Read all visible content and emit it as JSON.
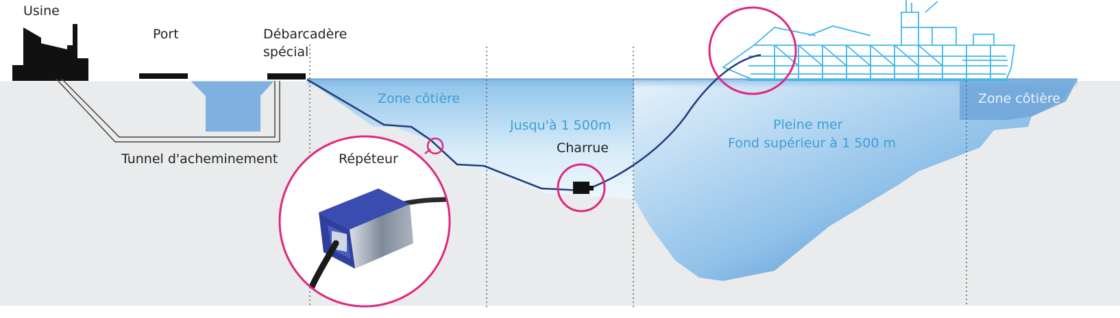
{
  "labels": {
    "usine": "Usine",
    "port": "Port",
    "debarcadere_1": "Débarcadère",
    "debarcadere_2": "spécial",
    "tunnel": "Tunnel d'acheminement",
    "zone_cotiere_left": "Zone côtière",
    "jusqua": "Jusqu'à 1 500m",
    "charrue": "Charrue",
    "repeteur": "Répéteur",
    "pleine_mer": "Pleine mer",
    "fond": "Fond supérieur à 1 500 m",
    "zone_cotiere_right": "Zone côtière"
  },
  "colors": {
    "seabed": "#eaebec",
    "water_light": "#dceef9",
    "water_deep": "#3b80c4",
    "cable": "#243d7c",
    "highlight": "#e0267f",
    "ship": "#3fb6ea",
    "land": "#111111"
  },
  "icons": [
    "factory-icon",
    "ship-icon",
    "repeater-icon",
    "plough-icon"
  ]
}
